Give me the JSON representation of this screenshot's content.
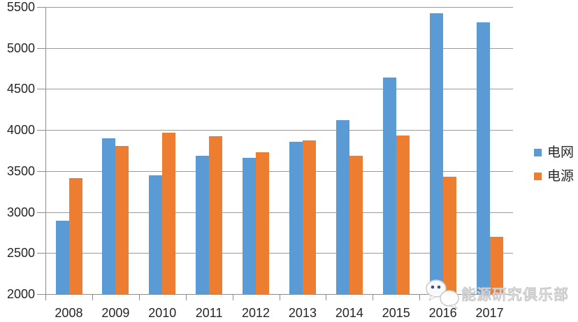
{
  "chart_data": {
    "type": "bar",
    "title": "",
    "categories": [
      "2008",
      "2009",
      "2010",
      "2011",
      "2012",
      "2013",
      "2014",
      "2015",
      "2016",
      "2017"
    ],
    "series": [
      {
        "name": "电网",
        "color": "#5B9BD5",
        "values": [
          2895,
          3898,
          3448,
          3687,
          3661,
          3856,
          4119,
          4640,
          5426,
          5315
        ]
      },
      {
        "name": "电源",
        "color": "#ED7D31",
        "values": [
          3413,
          3803,
          3969,
          3927,
          3732,
          3872,
          3686,
          3936,
          3429,
          2700
        ]
      }
    ],
    "ylim": [
      2000,
      5500
    ],
    "ytick_step": 500,
    "yticks": [
      2000,
      2500,
      3000,
      3500,
      4000,
      4500,
      5000,
      5500
    ],
    "grid": true,
    "legend_position": "right",
    "xlabel": "",
    "ylabel": ""
  },
  "watermark": {
    "text": "能源研究俱乐部",
    "icon": "wechat-chat-bubbles-icon"
  },
  "colors": {
    "gridline": "#9a9a9a",
    "axis": "#8c8c8c",
    "label_text": "#262626",
    "background": "#ffffff"
  }
}
